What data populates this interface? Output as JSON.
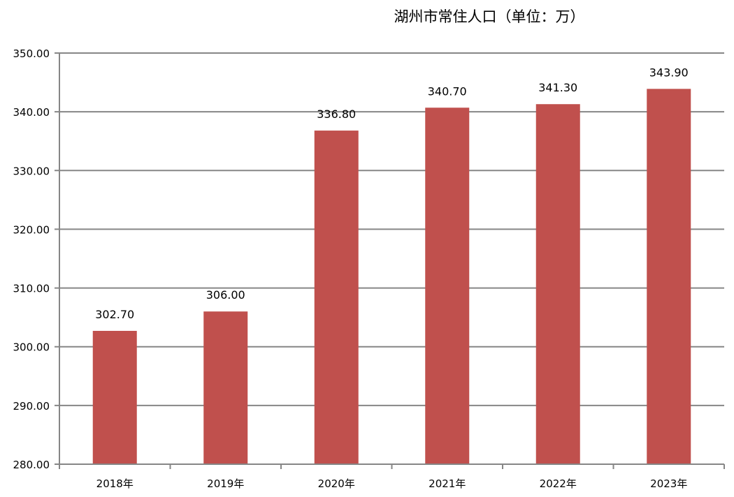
{
  "chart_data": {
    "type": "bar",
    "title": "湖州市常住人口（单位：万）",
    "xlabel": "",
    "ylabel": "",
    "categories": [
      "2018年",
      "2019年",
      "2020年",
      "2021年",
      "2022年",
      "2023年"
    ],
    "values": [
      302.7,
      306.0,
      336.8,
      340.7,
      341.3,
      343.9
    ],
    "data_labels": [
      "302.70",
      "306.00",
      "336.80",
      "340.70",
      "341.30",
      "343.90"
    ],
    "ylim": [
      280,
      350
    ],
    "yticks": [
      "280.00",
      "290.00",
      "300.00",
      "310.00",
      "320.00",
      "330.00",
      "340.00",
      "350.00"
    ],
    "grid": true,
    "legend": "none",
    "bar_color": "#c0504d",
    "grid_color": "#868686"
  }
}
